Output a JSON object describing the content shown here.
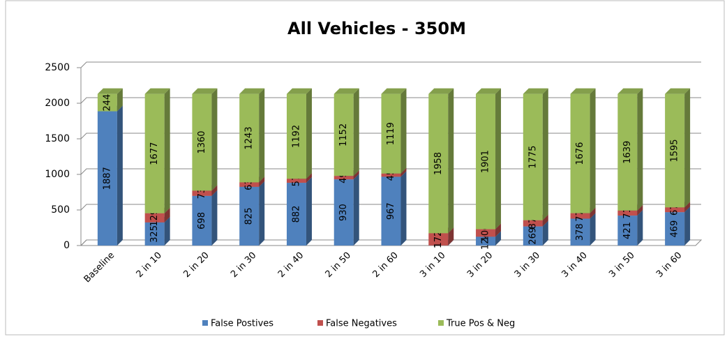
{
  "chart_data": {
    "type": "stacked_bar",
    "title": "All Vehicles - 350M",
    "categories": [
      "Baseline",
      "2 in 10",
      "2 in 20",
      "2 in 30",
      "2 in 40",
      "2 in 50",
      "2 in 60",
      "3 in 10",
      "3 in 20",
      "3 in 30",
      "3 in 40",
      "3 in 50",
      "3 in 60"
    ],
    "series": [
      {
        "name": "False Postives",
        "color": "#4f81bd",
        "values": [
          1887,
          325,
          698,
          825,
          882,
          930,
          967,
          1,
          124,
          269,
          378,
          421,
          469
        ]
      },
      {
        "name": "False Negatives",
        "color": "#c0504d",
        "values": [
          null,
          129,
          73,
          63,
          57,
          49,
          45,
          172,
          106,
          87,
          77,
          71,
          67
        ]
      },
      {
        "name": "True Pos & Neg",
        "color": "#9bbb59",
        "values": [
          244,
          1677,
          1360,
          1243,
          1192,
          1152,
          1119,
          1958,
          1901,
          1775,
          1676,
          1639,
          1595
        ]
      }
    ],
    "ylim": [
      0,
      2500
    ],
    "yticks": [
      0,
      500,
      1000,
      1500,
      2000,
      2500
    ],
    "grid": true,
    "legend": "bottom"
  }
}
